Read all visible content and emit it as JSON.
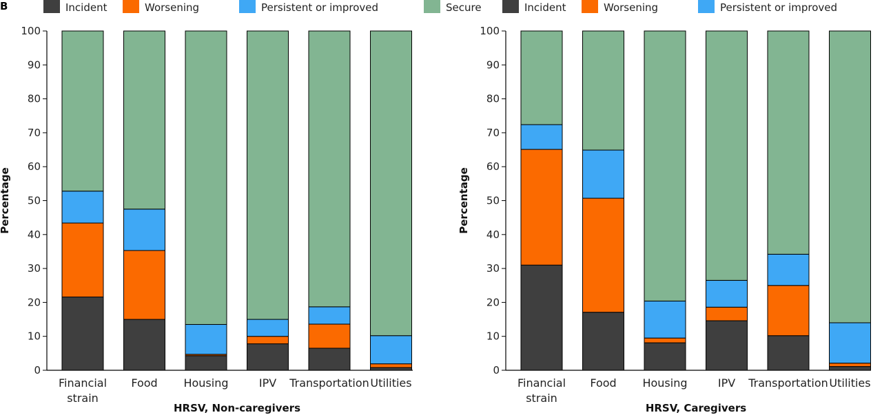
{
  "panel_label": "B",
  "legend": [
    {
      "label": "Incident",
      "color": "#3f3f3f"
    },
    {
      "label": "Worsening",
      "color": "#fb6a00"
    },
    {
      "label": "Persistent or improved",
      "color": "#3fa8f5"
    },
    {
      "label": "Secure",
      "color": "#82b592"
    }
  ],
  "chart_data": [
    {
      "type": "bar",
      "stacked": true,
      "title": "",
      "xlabel": "HRSV, Non-caregivers",
      "ylabel": "Percentage",
      "ylim": [
        0,
        100
      ],
      "yticks": [
        0,
        10,
        20,
        30,
        40,
        50,
        60,
        70,
        80,
        90,
        100
      ],
      "categories": [
        [
          "Financial",
          "strain"
        ],
        [
          "Food"
        ],
        [
          "Housing"
        ],
        [
          "IPV"
        ],
        [
          "Transportation"
        ],
        [
          "Utilities"
        ]
      ],
      "series": [
        {
          "name": "Incident",
          "color": "#3f3f3f",
          "values": [
            21.6,
            15.0,
            4.3,
            7.8,
            6.5,
            0.8
          ]
        },
        {
          "name": "Worsening",
          "color": "#fb6a00",
          "values": [
            21.8,
            20.3,
            0.4,
            2.2,
            7.1,
            1.1
          ]
        },
        {
          "name": "Persistent or improved",
          "color": "#3fa8f5",
          "values": [
            9.4,
            12.2,
            8.8,
            5.0,
            5.1,
            8.3
          ]
        },
        {
          "name": "Secure",
          "color": "#82b592",
          "values": [
            47.2,
            52.5,
            86.5,
            85.0,
            81.3,
            89.8
          ]
        }
      ]
    },
    {
      "type": "bar",
      "stacked": true,
      "title": "",
      "xlabel": "HRSV, Caregivers",
      "ylabel": "Percentage",
      "ylim": [
        0,
        100
      ],
      "yticks": [
        0,
        10,
        20,
        30,
        40,
        50,
        60,
        70,
        80,
        90,
        100
      ],
      "categories": [
        [
          "Financial",
          "strain"
        ],
        [
          "Food"
        ],
        [
          "Housing"
        ],
        [
          "IPV"
        ],
        [
          "Transportation"
        ],
        [
          "Utilities"
        ]
      ],
      "series": [
        {
          "name": "Incident",
          "color": "#3f3f3f",
          "values": [
            31.0,
            17.1,
            8.1,
            14.6,
            10.2,
            1.1
          ]
        },
        {
          "name": "Worsening",
          "color": "#fb6a00",
          "values": [
            34.1,
            33.6,
            1.4,
            4.0,
            14.8,
            1.0
          ]
        },
        {
          "name": "Persistent or improved",
          "color": "#3fa8f5",
          "values": [
            7.3,
            14.2,
            10.9,
            7.9,
            9.2,
            11.9
          ]
        },
        {
          "name": "Secure",
          "color": "#82b592",
          "values": [
            27.6,
            35.1,
            79.6,
            73.5,
            65.8,
            86.0
          ]
        }
      ]
    }
  ]
}
